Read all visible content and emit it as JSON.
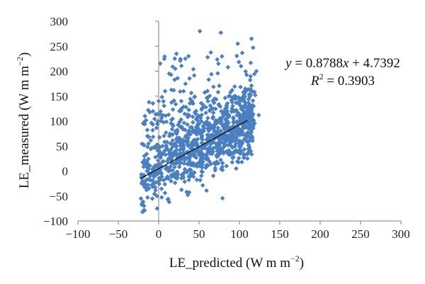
{
  "chart_data": {
    "type": "scatter",
    "xlabel": "LE_predicted",
    "xlabel_unit": "(W m",
    "ylabel": "LE_measured",
    "ylabel_unit": "(W m",
    "unit_exponent": "−2",
    "xlim": [
      -100,
      300
    ],
    "ylim": [
      -100,
      300
    ],
    "x_ticks": [
      -100,
      -50,
      0,
      50,
      100,
      150,
      200,
      250,
      300
    ],
    "y_ticks": [
      -100,
      -50,
      0,
      50,
      100,
      150,
      200,
      250,
      300
    ],
    "x_tick_labels": [
      "−100",
      "−50",
      "0",
      "50",
      "100",
      "150",
      "200",
      "250",
      "300"
    ],
    "y_tick_labels": [
      "−100",
      "−50",
      "0",
      "50",
      "100",
      "150",
      "200",
      "250",
      "300"
    ],
    "grid": false,
    "marker": "diamond",
    "marker_color": "#4a7fc1",
    "trendline": {
      "slope": 0.8788,
      "intercept": 4.7392,
      "x_range": [
        -22,
        110
      ],
      "color": "#111111",
      "equation_label": "y = 0.8788x + 4.7392",
      "r2_label": "R2 = 0.3903"
    },
    "points": {
      "description": "approx. 1000 diamond-marker observations, dense core between x -25..120 and y -90..120 with sparse outliers up to ~280",
      "sample": [
        [
          51,
          280
        ],
        [
          77,
          277
        ],
        [
          115,
          265
        ],
        [
          98,
          255
        ],
        [
          117,
          247
        ],
        [
          37,
          230
        ],
        [
          33,
          225
        ],
        [
          22,
          235
        ],
        [
          13,
          195
        ],
        [
          43,
          204
        ],
        [
          74,
          215
        ],
        [
          102,
          210
        ],
        [
          121,
          200
        ],
        [
          8,
          160
        ],
        [
          62,
          183
        ],
        [
          91,
          162
        ],
        [
          -17,
          110
        ],
        [
          -14,
          70
        ],
        [
          -22,
          -55
        ],
        [
          -20,
          -82
        ],
        [
          -2,
          -75
        ],
        [
          13,
          -62
        ],
        [
          124,
          112
        ],
        [
          114,
          40
        ],
        [
          110,
          25
        ],
        [
          103,
          18
        ],
        [
          96,
          5
        ],
        [
          84,
          10
        ],
        [
          0,
          140
        ],
        [
          28,
          140
        ]
      ]
    }
  }
}
